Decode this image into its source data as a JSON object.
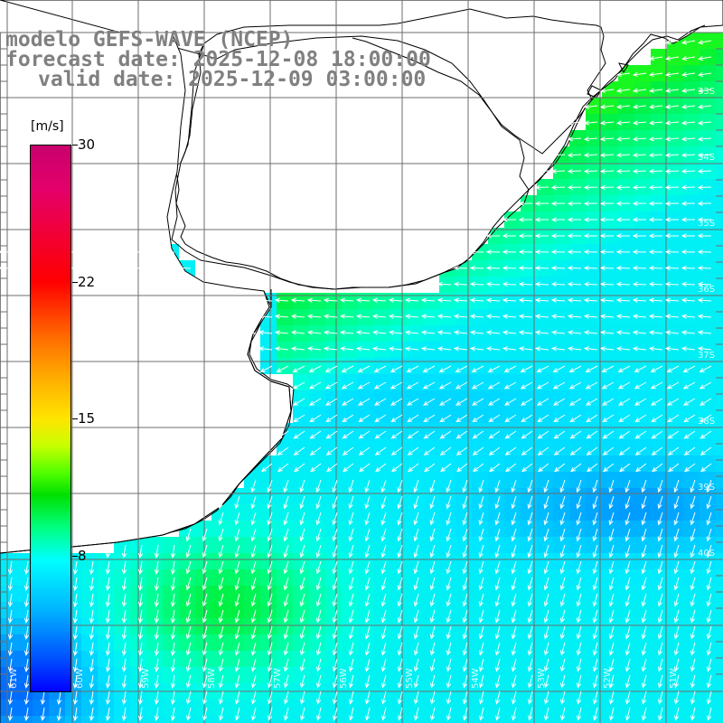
{
  "title": {
    "line1": "modelo GEFS-WAVE (NCEP)",
    "line2": "forecast date: 2025-12-08 18:00:00",
    "line3": "valid date: 2025-12-09 03:00:00"
  },
  "colorbar": {
    "unit": "[m/s]",
    "ticks": [
      "30",
      "22",
      "15",
      "8"
    ],
    "range": [
      0,
      30
    ],
    "colors": [
      "#0000ff",
      "#00b4ff",
      "#00ffff",
      "#00ff80",
      "#00e000",
      "#ffe400",
      "#ff0000",
      "#c8006e"
    ]
  },
  "map": {
    "land_color": "#ffffff",
    "coastline_color": "#000000",
    "grid_color": "#6e6e6e",
    "arrow_color": "#ffffff",
    "lat_labels": [
      "33S",
      "34S",
      "35S",
      "36S",
      "37S",
      "38S",
      "39S",
      "40S"
    ],
    "lon_labels": [
      "61W",
      "60W",
      "59W",
      "58W",
      "57W",
      "56W",
      "55W",
      "54W",
      "53W",
      "52W",
      "51W"
    ]
  }
}
